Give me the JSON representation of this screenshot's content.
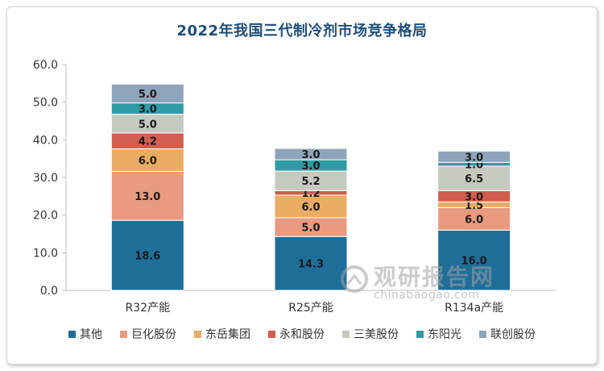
{
  "chart_data": {
    "type": "bar",
    "stacked": true,
    "title": "2022年我国三代制冷剂市场竞争格局",
    "xlabel": "",
    "ylabel": "",
    "categories": [
      "R32产能",
      "R25产能",
      "R134a产能"
    ],
    "ylim": [
      0,
      60
    ],
    "yticks": [
      "0.0",
      "10.0",
      "20.0",
      "30.0",
      "40.0",
      "50.0",
      "60.0"
    ],
    "grid": false,
    "legend_position": "bottom",
    "series": [
      {
        "name": "其他",
        "color": "#1f6e9a",
        "labels": [
          "18.6",
          "14.3",
          "16.0"
        ],
        "values": [
          18.6,
          14.3,
          16.0
        ]
      },
      {
        "name": "巨化股份",
        "color": "#e99a7f",
        "labels": [
          "13.0",
          "5.0",
          "6.0"
        ],
        "values": [
          13.0,
          5.0,
          6.0
        ]
      },
      {
        "name": "东岳集团",
        "color": "#e9ac62",
        "labels": [
          "6.0",
          "6.0",
          "1.5"
        ],
        "values": [
          6.0,
          6.0,
          1.5
        ]
      },
      {
        "name": "永和股份",
        "color": "#d15e4e",
        "labels": [
          "4.2",
          "1.2",
          "3.0"
        ],
        "values": [
          4.2,
          1.2,
          3.0
        ]
      },
      {
        "name": "三美股份",
        "color": "#c5cabf",
        "labels": [
          "5.0",
          "5.2",
          "6.5"
        ],
        "values": [
          5.0,
          5.2,
          6.5
        ]
      },
      {
        "name": "东阳光",
        "color": "#2f9ba5",
        "labels": [
          "3.0",
          "3.0",
          "1.0"
        ],
        "values": [
          3.0,
          3.0,
          1.0
        ]
      },
      {
        "name": "联创股份",
        "color": "#8ea4bb",
        "labels": [
          "5.0",
          "3.0",
          "3.0"
        ],
        "values": [
          5.0,
          3.0,
          3.0
        ]
      }
    ]
  },
  "watermark": {
    "cn": "观研报告网",
    "en": "chinabaogao.com"
  }
}
